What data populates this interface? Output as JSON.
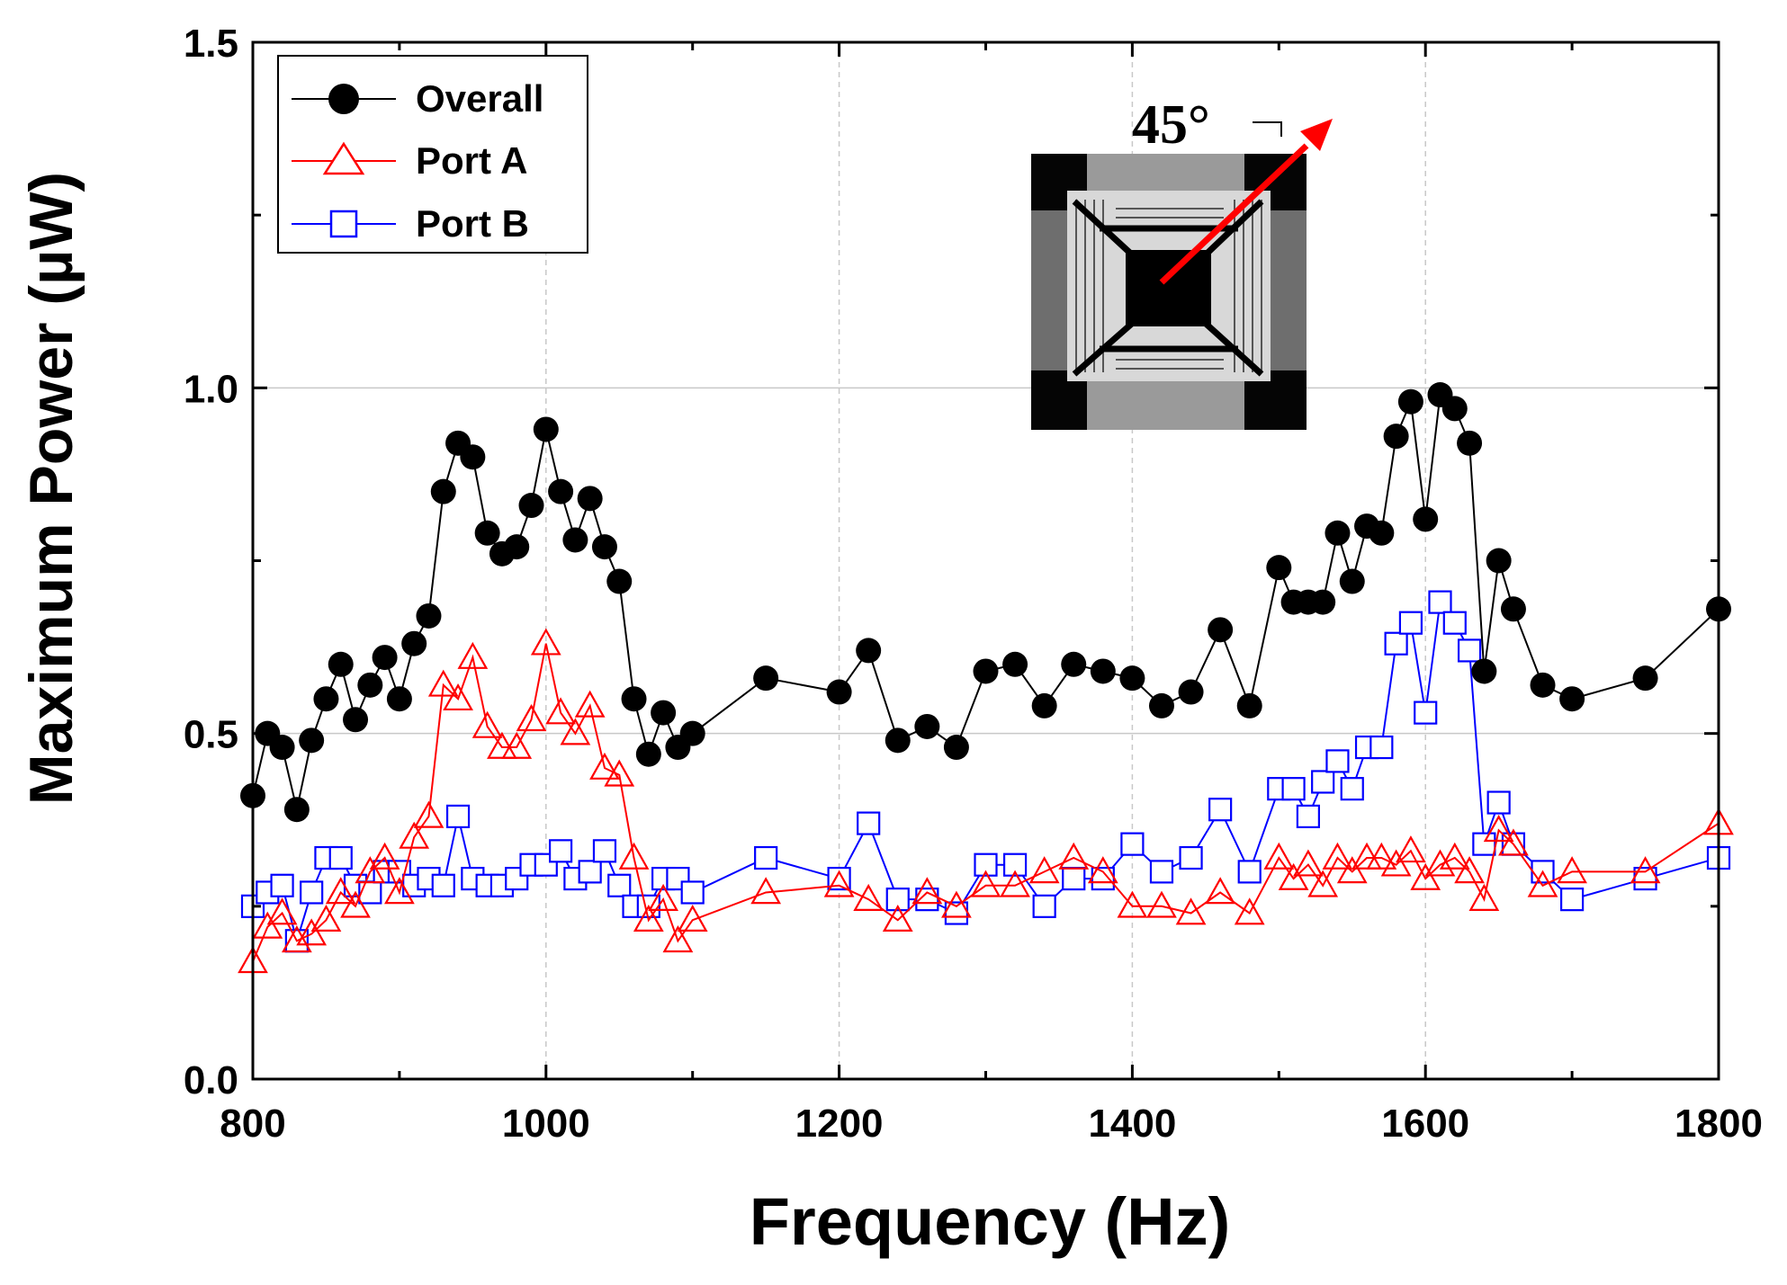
{
  "chart_data": {
    "type": "line",
    "title": "",
    "xlabel": "Frequency (Hz)",
    "ylabel": "Maximum Power (µW)",
    "xlim": [
      800,
      1800
    ],
    "ylim": [
      0.0,
      1.5
    ],
    "x_ticks": [
      800,
      1000,
      1200,
      1400,
      1600,
      1800
    ],
    "x_tick_labels": [
      "800",
      "1000",
      "1200",
      "1400",
      "1600",
      "1800"
    ],
    "y_ticks": [
      0.0,
      0.5,
      1.0,
      1.5
    ],
    "y_tick_labels": [
      "0.0",
      "0.5",
      "1.0",
      "1.5"
    ],
    "grid": "dashed gray at major ticks",
    "legend_position": "top-left",
    "inset": {
      "description": "device micrograph with arrow indicating excitation direction",
      "annotation": "45°",
      "arrow_color": "#ff0000"
    },
    "series": [
      {
        "name": "Overall",
        "color": "#000000",
        "marker": "filled-circle",
        "points": [
          [
            800,
            0.41
          ],
          [
            810,
            0.5
          ],
          [
            820,
            0.48
          ],
          [
            830,
            0.39
          ],
          [
            840,
            0.49
          ],
          [
            850,
            0.55
          ],
          [
            860,
            0.6
          ],
          [
            870,
            0.52
          ],
          [
            880,
            0.57
          ],
          [
            890,
            0.61
          ],
          [
            900,
            0.55
          ],
          [
            910,
            0.63
          ],
          [
            920,
            0.67
          ],
          [
            930,
            0.85
          ],
          [
            940,
            0.92
          ],
          [
            950,
            0.9
          ],
          [
            960,
            0.79
          ],
          [
            970,
            0.76
          ],
          [
            980,
            0.77
          ],
          [
            990,
            0.83
          ],
          [
            1000,
            0.94
          ],
          [
            1010,
            0.85
          ],
          [
            1020,
            0.78
          ],
          [
            1030,
            0.84
          ],
          [
            1040,
            0.77
          ],
          [
            1050,
            0.72
          ],
          [
            1060,
            0.55
          ],
          [
            1070,
            0.47
          ],
          [
            1080,
            0.53
          ],
          [
            1090,
            0.48
          ],
          [
            1100,
            0.5
          ],
          [
            1150,
            0.58
          ],
          [
            1200,
            0.56
          ],
          [
            1220,
            0.62
          ],
          [
            1240,
            0.49
          ],
          [
            1260,
            0.51
          ],
          [
            1280,
            0.48
          ],
          [
            1300,
            0.59
          ],
          [
            1320,
            0.6
          ],
          [
            1340,
            0.54
          ],
          [
            1360,
            0.6
          ],
          [
            1380,
            0.59
          ],
          [
            1400,
            0.58
          ],
          [
            1420,
            0.54
          ],
          [
            1440,
            0.56
          ],
          [
            1460,
            0.65
          ],
          [
            1480,
            0.54
          ],
          [
            1500,
            0.74
          ],
          [
            1510,
            0.69
          ],
          [
            1520,
            0.69
          ],
          [
            1530,
            0.69
          ],
          [
            1540,
            0.79
          ],
          [
            1550,
            0.72
          ],
          [
            1560,
            0.8
          ],
          [
            1570,
            0.79
          ],
          [
            1580,
            0.93
          ],
          [
            1590,
            0.98
          ],
          [
            1600,
            0.81
          ],
          [
            1610,
            0.99
          ],
          [
            1620,
            0.97
          ],
          [
            1630,
            0.92
          ],
          [
            1640,
            0.59
          ],
          [
            1650,
            0.75
          ],
          [
            1660,
            0.68
          ],
          [
            1680,
            0.57
          ],
          [
            1700,
            0.55
          ],
          [
            1750,
            0.58
          ],
          [
            1800,
            0.68
          ]
        ]
      },
      {
        "name": "Port A",
        "color": "#ff0000",
        "marker": "open-triangle",
        "points": [
          [
            800,
            0.17
          ],
          [
            810,
            0.22
          ],
          [
            820,
            0.24
          ],
          [
            830,
            0.2
          ],
          [
            840,
            0.21
          ],
          [
            850,
            0.23
          ],
          [
            860,
            0.27
          ],
          [
            870,
            0.25
          ],
          [
            880,
            0.3
          ],
          [
            890,
            0.32
          ],
          [
            900,
            0.27
          ],
          [
            910,
            0.35
          ],
          [
            920,
            0.38
          ],
          [
            930,
            0.57
          ],
          [
            940,
            0.55
          ],
          [
            950,
            0.61
          ],
          [
            960,
            0.51
          ],
          [
            970,
            0.48
          ],
          [
            980,
            0.48
          ],
          [
            990,
            0.52
          ],
          [
            1000,
            0.63
          ],
          [
            1010,
            0.53
          ],
          [
            1020,
            0.5
          ],
          [
            1030,
            0.54
          ],
          [
            1040,
            0.45
          ],
          [
            1050,
            0.44
          ],
          [
            1060,
            0.32
          ],
          [
            1070,
            0.23
          ],
          [
            1080,
            0.26
          ],
          [
            1090,
            0.2
          ],
          [
            1100,
            0.23
          ],
          [
            1150,
            0.27
          ],
          [
            1200,
            0.28
          ],
          [
            1220,
            0.26
          ],
          [
            1240,
            0.23
          ],
          [
            1260,
            0.27
          ],
          [
            1280,
            0.25
          ],
          [
            1300,
            0.28
          ],
          [
            1320,
            0.28
          ],
          [
            1340,
            0.3
          ],
          [
            1360,
            0.32
          ],
          [
            1380,
            0.3
          ],
          [
            1400,
            0.25
          ],
          [
            1420,
            0.25
          ],
          [
            1440,
            0.24
          ],
          [
            1460,
            0.27
          ],
          [
            1480,
            0.24
          ],
          [
            1500,
            0.32
          ],
          [
            1510,
            0.29
          ],
          [
            1520,
            0.31
          ],
          [
            1530,
            0.28
          ],
          [
            1540,
            0.32
          ],
          [
            1550,
            0.3
          ],
          [
            1560,
            0.32
          ],
          [
            1570,
            0.32
          ],
          [
            1580,
            0.31
          ],
          [
            1590,
            0.33
          ],
          [
            1600,
            0.29
          ],
          [
            1610,
            0.31
          ],
          [
            1620,
            0.32
          ],
          [
            1630,
            0.3
          ],
          [
            1640,
            0.26
          ],
          [
            1650,
            0.36
          ],
          [
            1660,
            0.34
          ],
          [
            1680,
            0.28
          ],
          [
            1700,
            0.3
          ],
          [
            1750,
            0.3
          ],
          [
            1800,
            0.37
          ]
        ]
      },
      {
        "name": "Port B",
        "color": "#0000ff",
        "marker": "open-square",
        "points": [
          [
            800,
            0.25
          ],
          [
            810,
            0.27
          ],
          [
            820,
            0.28
          ],
          [
            830,
            0.2
          ],
          [
            840,
            0.27
          ],
          [
            850,
            0.32
          ],
          [
            860,
            0.32
          ],
          [
            870,
            0.28
          ],
          [
            880,
            0.27
          ],
          [
            890,
            0.3
          ],
          [
            900,
            0.3
          ],
          [
            910,
            0.28
          ],
          [
            920,
            0.29
          ],
          [
            930,
            0.28
          ],
          [
            940,
            0.38
          ],
          [
            950,
            0.29
          ],
          [
            960,
            0.28
          ],
          [
            970,
            0.28
          ],
          [
            980,
            0.29
          ],
          [
            990,
            0.31
          ],
          [
            1000,
            0.31
          ],
          [
            1010,
            0.33
          ],
          [
            1020,
            0.29
          ],
          [
            1030,
            0.3
          ],
          [
            1040,
            0.33
          ],
          [
            1050,
            0.28
          ],
          [
            1060,
            0.25
          ],
          [
            1070,
            0.25
          ],
          [
            1080,
            0.29
          ],
          [
            1090,
            0.29
          ],
          [
            1100,
            0.27
          ],
          [
            1150,
            0.32
          ],
          [
            1200,
            0.29
          ],
          [
            1220,
            0.37
          ],
          [
            1240,
            0.26
          ],
          [
            1260,
            0.26
          ],
          [
            1280,
            0.24
          ],
          [
            1300,
            0.31
          ],
          [
            1320,
            0.31
          ],
          [
            1340,
            0.25
          ],
          [
            1360,
            0.29
          ],
          [
            1380,
            0.29
          ],
          [
            1400,
            0.34
          ],
          [
            1420,
            0.3
          ],
          [
            1440,
            0.32
          ],
          [
            1460,
            0.39
          ],
          [
            1480,
            0.3
          ],
          [
            1500,
            0.42
          ],
          [
            1510,
            0.42
          ],
          [
            1520,
            0.38
          ],
          [
            1530,
            0.43
          ],
          [
            1540,
            0.46
          ],
          [
            1550,
            0.42
          ],
          [
            1560,
            0.48
          ],
          [
            1570,
            0.48
          ],
          [
            1580,
            0.63
          ],
          [
            1590,
            0.66
          ],
          [
            1600,
            0.53
          ],
          [
            1610,
            0.69
          ],
          [
            1620,
            0.66
          ],
          [
            1630,
            0.62
          ],
          [
            1640,
            0.34
          ],
          [
            1650,
            0.4
          ],
          [
            1660,
            0.34
          ],
          [
            1680,
            0.3
          ],
          [
            1700,
            0.26
          ],
          [
            1750,
            0.29
          ],
          [
            1800,
            0.32
          ]
        ]
      }
    ]
  }
}
